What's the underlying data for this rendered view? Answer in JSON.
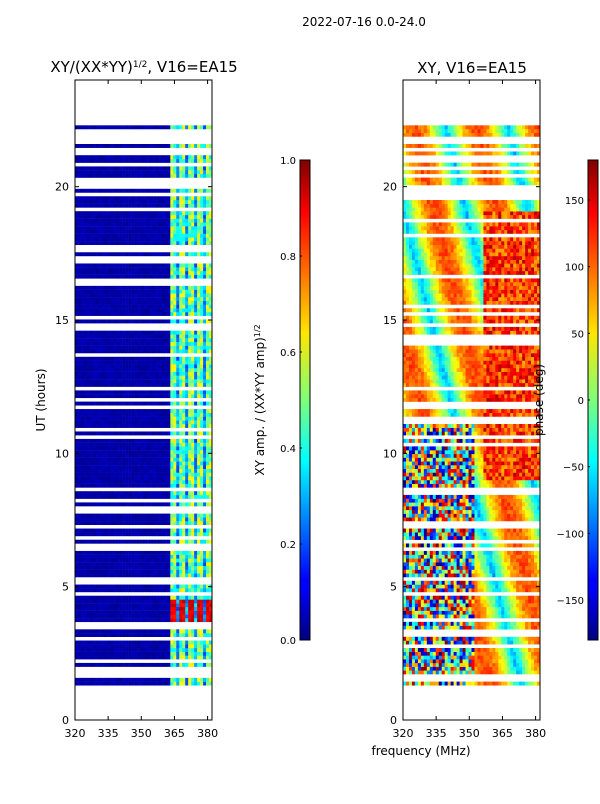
{
  "chart_data": [
    {
      "type": "heatmap",
      "suptitle": "2022-07-16 0.0-24.0",
      "title": "XY/(XX*YY)",
      "title_exponent": "1/2",
      "title_suffix": ", V16=EA15",
      "xlabel": "",
      "ylabel": "UT (hours)",
      "xlim": [
        320,
        382
      ],
      "ylim": [
        0,
        24
      ],
      "xticks": [
        320,
        335,
        350,
        365,
        380
      ],
      "yticks": [
        0,
        5,
        10,
        15,
        20
      ],
      "data_range_hours": [
        1.3,
        22.3
      ],
      "colorbar": {
        "label": "XY amp. / (XX*YY amp)",
        "label_exponent": "1/2",
        "range": [
          0.0,
          1.0
        ],
        "ticks": [
          0.0,
          0.2,
          0.4,
          0.6,
          0.8,
          1.0
        ],
        "tick_labels": [
          "0.0",
          "0.2",
          "0.4",
          "0.6",
          "0.8",
          "1.0"
        ],
        "colormap": "jet"
      }
    },
    {
      "type": "heatmap",
      "title": "XY, V16=EA15",
      "xlabel": "frequency (MHz)",
      "ylabel": "",
      "xlim": [
        320,
        382
      ],
      "ylim": [
        0,
        24
      ],
      "xticks": [
        320,
        335,
        350,
        365,
        380
      ],
      "yticks": [
        0,
        5,
        10,
        15,
        20
      ],
      "data_range_hours": [
        1.3,
        22.3
      ],
      "colorbar": {
        "label": "phase (deg)",
        "range": [
          -180,
          180
        ],
        "ticks": [
          -150,
          -100,
          -50,
          0,
          50,
          100,
          150
        ],
        "tick_labels": [
          "−150",
          "−100",
          "−50",
          "0",
          "50",
          "100",
          "150"
        ],
        "colormap": "jet"
      }
    }
  ]
}
